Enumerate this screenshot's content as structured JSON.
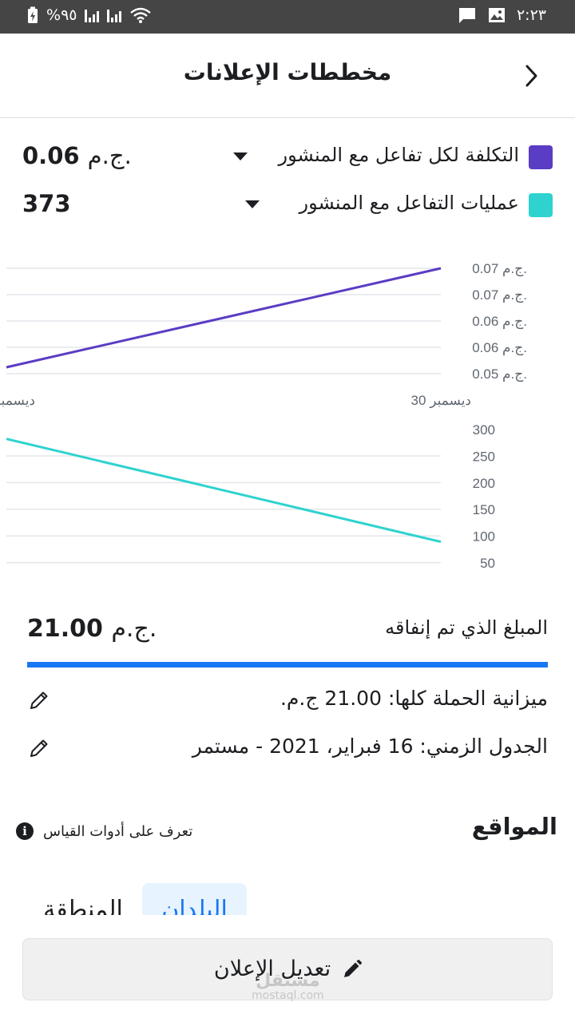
{
  "status_bar": {
    "battery_percent": "%٩٥",
    "time": "٢:٢٣"
  },
  "header": {
    "title": "مخططات الإعلانات"
  },
  "metrics": [
    {
      "label": "التكلفة لكل تفاعل مع المنشور",
      "value": "0.06",
      "currency": "ج.م.",
      "color": "#5b3cc4"
    },
    {
      "label": "عمليات  التفاعل مع المنشور",
      "value": "373",
      "currency": "",
      "color": "#2ed3cf"
    }
  ],
  "chart_data": [
    {
      "type": "line",
      "series": [
        {
          "values": [
            0.05,
            0.07
          ]
        }
      ],
      "color": "#5b3cc4",
      "ytick_labels": [
        "0.07 ج.م.",
        "0.07 ج.م.",
        "0.06 ج.م.",
        "0.06 ج.م.",
        "0.05 ج.م."
      ],
      "xtick_labels": [
        "ديسمبر 30",
        "ديسمبر"
      ]
    },
    {
      "type": "line",
      "series": [
        {
          "values": [
            275,
            100
          ]
        }
      ],
      "color": "#2ed3cf",
      "ytick_labels": [
        "300",
        "250",
        "200",
        "150",
        "100",
        "50"
      ],
      "ylim": [
        50,
        300
      ]
    }
  ],
  "spend": {
    "label": "المبلغ الذي تم إنفاقه",
    "value": "21.00",
    "currency": "ج.م.",
    "progress_fraction": 1.0
  },
  "budget_text": "ميزانية الحملة كلها: 21.00 ج.م.",
  "schedule_text": "الجدول الزمني: 16 فبراير، 2021 - مستمر",
  "placements": {
    "title": "المواقع",
    "learn_text": "تعرف على أدوات القياس",
    "tabs": [
      "البلدان",
      "المنطقة"
    ]
  },
  "edit_button": {
    "label": "تعديل الإعلان"
  },
  "watermark": {
    "ar": "مستقل",
    "en": "mostaql.com"
  }
}
